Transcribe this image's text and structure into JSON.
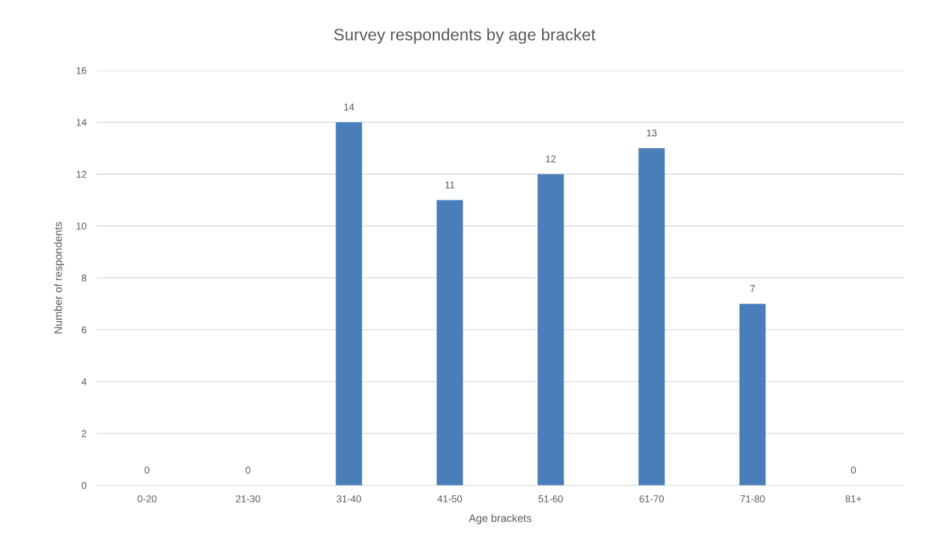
{
  "chart_data": {
    "type": "bar",
    "title": "Survey respondents by age bracket",
    "xlabel": "Age brackets",
    "ylabel": "Number of respondents",
    "categories": [
      "0-20",
      "21-30",
      "31-40",
      "41-50",
      "51-60",
      "61-70",
      "71-80",
      "81+"
    ],
    "values": [
      0,
      0,
      14,
      11,
      12,
      13,
      7,
      0
    ],
    "color": "#4a7ebb",
    "ylim": [
      0,
      16
    ],
    "yticks": [
      0,
      2,
      4,
      6,
      8,
      10,
      12,
      14,
      16
    ],
    "grid": "y",
    "data_labels": true
  }
}
